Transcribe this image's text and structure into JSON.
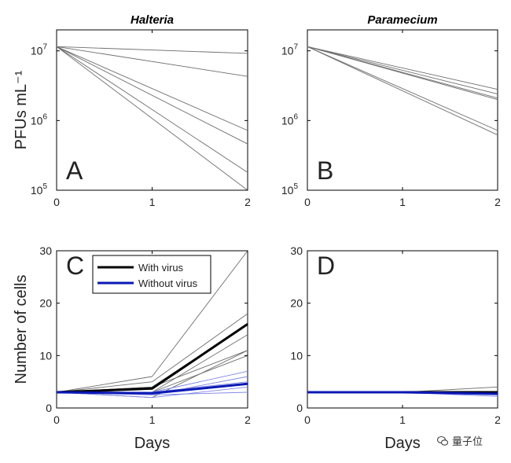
{
  "colors": {
    "axis": "#000000",
    "virus_individual": "#6e6e6e",
    "virus_mean": "#000000",
    "novirus_individual": "#7f86e8",
    "novirus_mean": "#0a18b4",
    "watermark": "#333333"
  },
  "watermark": {
    "text": "量子位",
    "icon": "wechat-icon"
  },
  "chart_data": [
    {
      "panel": "A",
      "type": "line",
      "title": "Halteria",
      "xlabel": "",
      "ylabel": "PFUs mL⁻¹",
      "yscale": "log",
      "xlim": [
        0,
        2
      ],
      "ylim": [
        100000,
        20000000
      ],
      "xticks": [
        "0",
        "1",
        "2"
      ],
      "yticks": [
        {
          "base": "10",
          "exp": "5",
          "value": 100000
        },
        {
          "base": "10",
          "exp": "6",
          "value": 1000000
        },
        {
          "base": "10",
          "exp": "7",
          "value": 10000000
        }
      ],
      "grid": false,
      "legend": null,
      "series": [
        {
          "values": [
            11500000,
            9200000
          ]
        },
        {
          "values": [
            11500000,
            4300000
          ]
        },
        {
          "values": [
            11500000,
            720000
          ]
        },
        {
          "values": [
            11500000,
            460000
          ]
        },
        {
          "values": [
            11500000,
            180000
          ]
        },
        {
          "values": [
            11500000,
            100000
          ]
        }
      ],
      "x": [
        0,
        2
      ]
    },
    {
      "panel": "B",
      "type": "line",
      "title": "Paramecium",
      "xlabel": "",
      "ylabel": "",
      "yscale": "log",
      "xlim": [
        0,
        2
      ],
      "ylim": [
        100000,
        20000000
      ],
      "xticks": [
        "0",
        "1",
        "2"
      ],
      "yticks": [
        {
          "base": "10",
          "exp": "5",
          "value": 100000
        },
        {
          "base": "10",
          "exp": "6",
          "value": 1000000
        },
        {
          "base": "10",
          "exp": "7",
          "value": 10000000
        }
      ],
      "grid": false,
      "legend": null,
      "series": [
        {
          "values": [
            11500000,
            2800000
          ]
        },
        {
          "values": [
            11500000,
            2400000
          ]
        },
        {
          "values": [
            11500000,
            2100000
          ]
        },
        {
          "values": [
            11500000,
            2000000
          ]
        },
        {
          "values": [
            11500000,
            720000
          ]
        },
        {
          "values": [
            11500000,
            620000
          ]
        }
      ],
      "x": [
        0,
        2
      ]
    },
    {
      "panel": "C",
      "type": "line",
      "title": "",
      "xlabel": "Days",
      "ylabel": "Number of cells",
      "yscale": "linear",
      "xlim": [
        0,
        2
      ],
      "ylim": [
        0,
        30
      ],
      "xticks": [
        "0",
        "1",
        "2"
      ],
      "yticks": [
        {
          "label": "0",
          "value": 0
        },
        {
          "label": "10",
          "value": 10
        },
        {
          "label": "20",
          "value": 20
        },
        {
          "label": "30",
          "value": 30
        }
      ],
      "grid": false,
      "legend": {
        "placement": "top-left",
        "entries": [
          {
            "label": "With virus",
            "group": "with_virus"
          },
          {
            "label": "Without virus",
            "group": "without_virus"
          }
        ]
      },
      "x": [
        0,
        1,
        2
      ],
      "series": [
        {
          "group": "with_virus",
          "role": "individual",
          "values": [
            3,
            6,
            30
          ]
        },
        {
          "group": "with_virus",
          "role": "individual",
          "values": [
            3,
            5,
            18
          ]
        },
        {
          "group": "with_virus",
          "role": "individual",
          "values": [
            3,
            4,
            16
          ]
        },
        {
          "group": "with_virus",
          "role": "individual",
          "values": [
            3,
            3,
            14
          ]
        },
        {
          "group": "with_virus",
          "role": "individual",
          "values": [
            3,
            4,
            11
          ]
        },
        {
          "group": "with_virus",
          "role": "individual",
          "values": [
            3,
            2,
            11
          ]
        },
        {
          "group": "with_virus",
          "role": "individual",
          "values": [
            3,
            3,
            10
          ]
        },
        {
          "group": "with_virus",
          "role": "mean",
          "values": [
            3,
            3.7,
            16
          ]
        },
        {
          "group": "without_virus",
          "role": "individual",
          "values": [
            3,
            3,
            7
          ]
        },
        {
          "group": "without_virus",
          "role": "individual",
          "values": [
            3,
            2.5,
            6
          ]
        },
        {
          "group": "without_virus",
          "role": "individual",
          "values": [
            3,
            3,
            5
          ]
        },
        {
          "group": "without_virus",
          "role": "individual",
          "values": [
            3,
            2,
            4
          ]
        },
        {
          "group": "without_virus",
          "role": "individual",
          "values": [
            3,
            2.5,
            3
          ]
        },
        {
          "group": "without_virus",
          "role": "mean",
          "values": [
            3,
            2.8,
            4.6
          ]
        }
      ]
    },
    {
      "panel": "D",
      "type": "line",
      "title": "",
      "xlabel": "Days",
      "ylabel": "",
      "yscale": "linear",
      "xlim": [
        0,
        2
      ],
      "ylim": [
        0,
        30
      ],
      "xticks": [
        "0",
        "1",
        "2"
      ],
      "yticks": [
        {
          "label": "0",
          "value": 0
        },
        {
          "label": "10",
          "value": 10
        },
        {
          "label": "20",
          "value": 20
        },
        {
          "label": "30",
          "value": 30
        }
      ],
      "grid": false,
      "legend": null,
      "x": [
        0,
        1,
        2
      ],
      "series": [
        {
          "group": "with_virus",
          "role": "individual",
          "values": [
            3,
            3,
            4
          ]
        },
        {
          "group": "with_virus",
          "role": "individual",
          "values": [
            3,
            3,
            3
          ]
        },
        {
          "group": "with_virus",
          "role": "mean",
          "values": [
            3,
            3,
            3
          ]
        },
        {
          "group": "without_virus",
          "role": "individual",
          "values": [
            3,
            3,
            2.2
          ]
        },
        {
          "group": "without_virus",
          "role": "individual",
          "values": [
            3,
            3,
            2.5
          ]
        },
        {
          "group": "without_virus",
          "role": "mean",
          "values": [
            3,
            3,
            2.7
          ]
        }
      ]
    }
  ]
}
